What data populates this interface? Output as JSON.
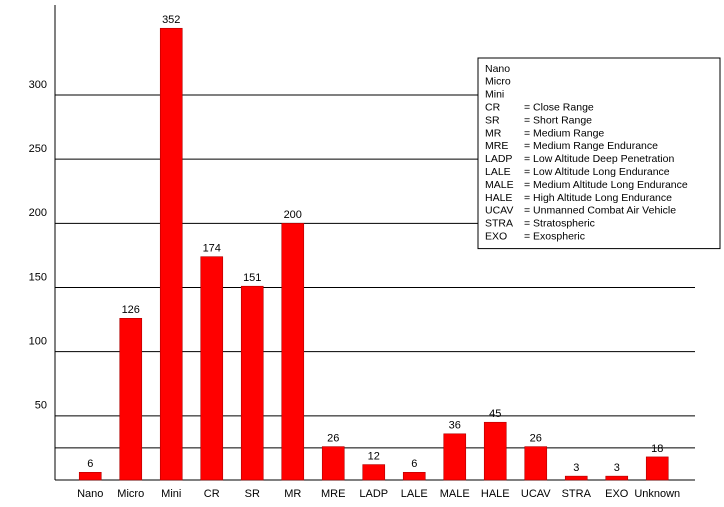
{
  "chart_data": {
    "type": "bar",
    "categories": [
      "Nano",
      "Micro",
      "Mini",
      "CR",
      "SR",
      "MR",
      "MRE",
      "LADP",
      "LALE",
      "MALE",
      "HALE",
      "UCAV",
      "STRA",
      "EXO",
      "Unknown"
    ],
    "values": [
      6,
      126,
      352,
      174,
      151,
      200,
      26,
      12,
      6,
      36,
      45,
      26,
      3,
      3,
      18
    ],
    "color": "#ff0000",
    "ylim": [
      0,
      360
    ],
    "yticks": [
      50,
      100,
      150,
      200,
      250,
      300
    ],
    "minor_gridlines": [
      25
    ],
    "grid": true,
    "legend": [
      {
        "abbr": "Nano"
      },
      {
        "abbr": "Micro"
      },
      {
        "abbr": "Mini"
      },
      {
        "abbr": "CR",
        "desc": "= Close Range"
      },
      {
        "abbr": "SR",
        "desc": "= Short Range"
      },
      {
        "abbr": "MR",
        "desc": "= Medium Range"
      },
      {
        "abbr": "MRE",
        "desc": "= Medium Range Endurance"
      },
      {
        "abbr": "LADP",
        "desc": "= Low Altitude Deep Penetration"
      },
      {
        "abbr": "LALE",
        "desc": "= Low Altitude Long Endurance"
      },
      {
        "abbr": "MALE",
        "desc": "= Medium Altitude Long Endurance"
      },
      {
        "abbr": "HALE",
        "desc": "= High Altitude Long Endurance"
      },
      {
        "abbr": "UCAV",
        "desc": "= Unmanned Combat Air Vehicle"
      },
      {
        "abbr": "STRA",
        "desc": "= Stratospheric"
      },
      {
        "abbr": "EXO",
        "desc": "= Exospheric"
      }
    ]
  }
}
